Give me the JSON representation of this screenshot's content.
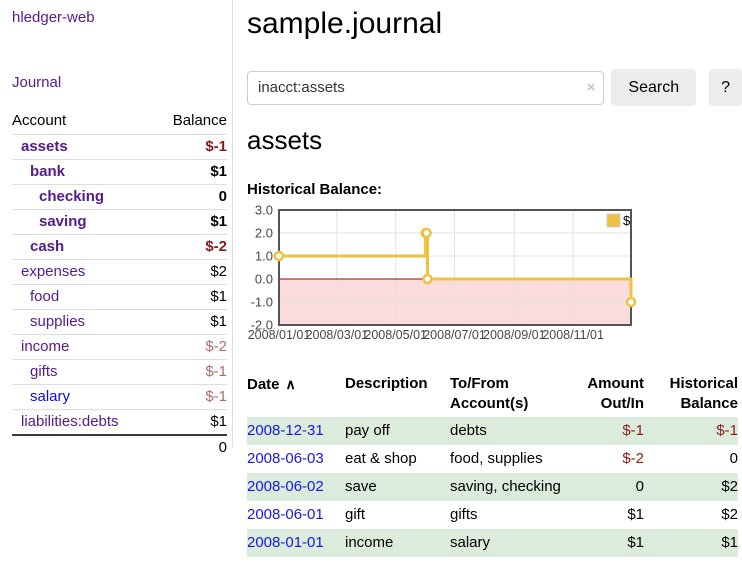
{
  "app": {
    "brand": "hledger-web",
    "nav_journal": "Journal"
  },
  "sidebar": {
    "headers": {
      "account": "Account",
      "balance": "Balance"
    },
    "accounts": [
      {
        "name": "assets",
        "balance": "$-1",
        "indent": 0,
        "bold": true,
        "balance_style": "neg-strong",
        "name_style": "purple"
      },
      {
        "name": "bank",
        "balance": "$1",
        "indent": 1,
        "bold": true,
        "balance_style": "pos",
        "name_style": "purple"
      },
      {
        "name": "checking",
        "balance": "0",
        "indent": 2,
        "bold": true,
        "balance_style": "pos",
        "name_style": "purple"
      },
      {
        "name": "saving",
        "balance": "$1",
        "indent": 2,
        "bold": true,
        "balance_style": "pos",
        "name_style": "purple"
      },
      {
        "name": "cash",
        "balance": "$-2",
        "indent": 1,
        "bold": true,
        "balance_style": "neg-strong",
        "name_style": "purple"
      },
      {
        "name": "expenses",
        "balance": "$2",
        "indent": 0,
        "bold": false,
        "balance_style": "pos",
        "name_style": "purple"
      },
      {
        "name": "food",
        "balance": "$1",
        "indent": 1,
        "bold": false,
        "balance_style": "pos",
        "name_style": "purple"
      },
      {
        "name": "supplies",
        "balance": "$1",
        "indent": 1,
        "bold": false,
        "balance_style": "pos",
        "name_style": "purple"
      },
      {
        "name": "income",
        "balance": "$-2",
        "indent": 0,
        "bold": false,
        "balance_style": "neg-muted",
        "name_style": "purple"
      },
      {
        "name": "gifts",
        "balance": "$-1",
        "indent": 1,
        "bold": false,
        "balance_style": "neg-muted",
        "name_style": "purple"
      },
      {
        "name": "salary",
        "balance": "$-1",
        "indent": 1,
        "bold": false,
        "balance_style": "neg-muted",
        "name_style": "blue"
      },
      {
        "name": "liabilities:debts",
        "balance": "$1",
        "indent": 0,
        "bold": false,
        "balance_style": "pos",
        "name_style": "purple"
      }
    ],
    "total": "0"
  },
  "header": {
    "title": "sample.journal"
  },
  "search": {
    "value": "inacct:assets",
    "clear_icon": "×",
    "button_label": "Search",
    "help_label": "?"
  },
  "account_page": {
    "title": "assets",
    "chart_label": "Historical Balance:"
  },
  "chart_data": {
    "type": "line",
    "title": "Historical Balance:",
    "step": true,
    "x_type": "date",
    "xlim": [
      "2008-01-01",
      "2008-12-31"
    ],
    "ylim": [
      -2,
      3
    ],
    "xticks": [
      {
        "date": "2008-01-01",
        "label": "2008/01/01"
      },
      {
        "date": "2008-03-01",
        "label": "2008/03/01"
      },
      {
        "date": "2008-05-01",
        "label": "2008/05/01"
      },
      {
        "date": "2008-07-01",
        "label": "2008/07/01"
      },
      {
        "date": "2008-09-01",
        "label": "2008/09/01"
      },
      {
        "date": "2008-11-01",
        "label": "2008/11/01"
      }
    ],
    "yticks": [
      {
        "v": 3,
        "label": "3.0"
      },
      {
        "v": 2,
        "label": "2.0"
      },
      {
        "v": 1,
        "label": "1.0"
      },
      {
        "v": 0,
        "label": "0.0"
      },
      {
        "v": -1,
        "label": "-1.0"
      },
      {
        "v": -2,
        "label": "-2.0"
      }
    ],
    "series": [
      {
        "name": "$",
        "color": "#edc240",
        "points": [
          {
            "x": "2008-01-01",
            "y": 1
          },
          {
            "x": "2008-06-01",
            "y": 2
          },
          {
            "x": "2008-06-02",
            "y": 2
          },
          {
            "x": "2008-06-03",
            "y": 0
          },
          {
            "x": "2008-12-31",
            "y": -1
          }
        ]
      }
    ],
    "legend": {
      "label": "$",
      "position": "top-right"
    },
    "grid": true,
    "colors": {
      "border": "#545454",
      "grid": "#e2e2e2",
      "zero_line": "#a40000",
      "negative_region": "#fadcdc",
      "tick_text": "#474747",
      "marker_fill": "#ffffff",
      "legend_box_border": "#cccccc"
    }
  },
  "register": {
    "sort_icon": "∧",
    "columns": [
      {
        "lines": [
          "Date"
        ],
        "align": "left",
        "sortable": true
      },
      {
        "lines": [
          "Description"
        ],
        "align": "left"
      },
      {
        "lines": [
          "To/From",
          "Account(s)"
        ],
        "align": "left"
      },
      {
        "lines": [
          "Amount",
          "Out/In"
        ],
        "align": "right"
      },
      {
        "lines": [
          "Historical",
          "Balance"
        ],
        "align": "right"
      }
    ],
    "rows": [
      {
        "date": "2008-12-31",
        "description": "pay off",
        "accounts": "debts",
        "amount": "$-1",
        "amount_neg": true,
        "balance": "$-1",
        "balance_neg": true,
        "striped": true
      },
      {
        "date": "2008-06-03",
        "description": "eat & shop",
        "accounts": "food, supplies",
        "amount": "$-2",
        "amount_neg": true,
        "balance": "0",
        "balance_neg": false,
        "striped": false
      },
      {
        "date": "2008-06-02",
        "description": "save",
        "accounts": "saving, checking",
        "amount": "0",
        "amount_neg": false,
        "balance": "$2",
        "balance_neg": false,
        "striped": true
      },
      {
        "date": "2008-06-01",
        "description": "gift",
        "accounts": "gifts",
        "amount": "$1",
        "amount_neg": false,
        "balance": "$2",
        "balance_neg": false,
        "striped": false
      },
      {
        "date": "2008-01-01",
        "description": "income",
        "accounts": "salary",
        "amount": "$1",
        "amount_neg": false,
        "balance": "$1",
        "balance_neg": false,
        "striped": true
      }
    ]
  }
}
